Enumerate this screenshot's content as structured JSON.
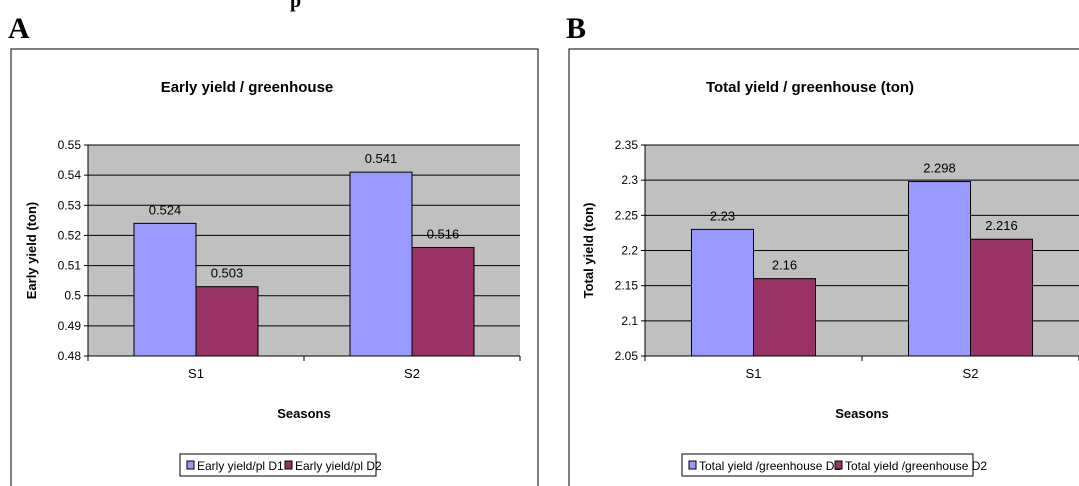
{
  "header": {
    "partial_text": "p"
  },
  "panels": [
    {
      "letter": "A"
    },
    {
      "letter": "B"
    }
  ],
  "chart_data": [
    {
      "type": "bar",
      "title": "Early yield / greenhouse",
      "xlabel": "Seasons",
      "ylabel": "Early yield (ton)",
      "categories": [
        "S1",
        "S2"
      ],
      "ylim": [
        0.48,
        0.55
      ],
      "yticks": [
        "0.48",
        "0.49",
        "0.5",
        "0.51",
        "0.52",
        "0.53",
        "0.54",
        "0.55"
      ],
      "grid": true,
      "legend_position": "bottom",
      "series": [
        {
          "name": "Early yield/pl D1",
          "color": "#9999ff",
          "values": [
            0.524,
            0.541
          ],
          "labels": [
            "0.524",
            "0.541"
          ]
        },
        {
          "name": "Early yield/pl D2",
          "color": "#993366",
          "values": [
            0.503,
            0.516
          ],
          "labels": [
            "0.503",
            "0.516"
          ]
        }
      ],
      "plot_bg": "#c0c0c0"
    },
    {
      "type": "bar",
      "title": "Total yield / greenhouse (ton)",
      "xlabel": "Seasons",
      "ylabel": "Total yield (ton)",
      "categories": [
        "S1",
        "S2"
      ],
      "ylim": [
        2.05,
        2.35
      ],
      "yticks": [
        "2.05",
        "2.1",
        "2.15",
        "2.2",
        "2.25",
        "2.3",
        "2.35"
      ],
      "grid": true,
      "legend_position": "bottom",
      "series": [
        {
          "name": "Total yield /greenhouse D1",
          "color": "#9999ff",
          "values": [
            2.23,
            2.298
          ],
          "labels": [
            "2.23",
            "2.298"
          ]
        },
        {
          "name": "Total yield /greenhouse D2",
          "color": "#993366",
          "values": [
            2.16,
            2.216
          ],
          "labels": [
            "2.16",
            "2.216"
          ]
        }
      ],
      "plot_bg": "#c0c0c0"
    }
  ]
}
